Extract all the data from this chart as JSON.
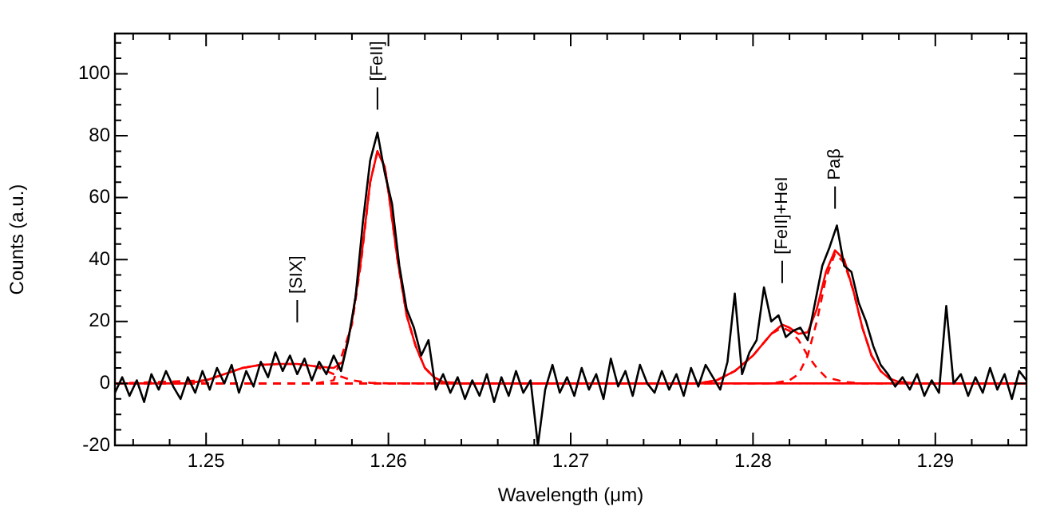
{
  "chart_data": {
    "type": "line",
    "xlabel": "Wavelength (μm)",
    "ylabel": "Counts (a.u.)",
    "xlim": [
      1.245,
      1.295
    ],
    "ylim": [
      -20,
      113
    ],
    "xticks": [
      {
        "value": 1.246,
        "label": null
      },
      {
        "value": 1.248,
        "label": null
      },
      1.25,
      {
        "value": 1.252,
        "label": null
      },
      {
        "value": 1.254,
        "label": null
      },
      {
        "value": 1.256,
        "label": null
      },
      {
        "value": 1.258,
        "label": null
      },
      1.26,
      {
        "value": 1.262,
        "label": null
      },
      {
        "value": 1.264,
        "label": null
      },
      {
        "value": 1.266,
        "label": null
      },
      {
        "value": 1.268,
        "label": null
      },
      1.27,
      {
        "value": 1.272,
        "label": null
      },
      {
        "value": 1.274,
        "label": null
      },
      {
        "value": 1.276,
        "label": null
      },
      {
        "value": 1.278,
        "label": null
      },
      1.28,
      {
        "value": 1.282,
        "label": null
      },
      {
        "value": 1.284,
        "label": null
      },
      {
        "value": 1.286,
        "label": null
      },
      {
        "value": 1.288,
        "label": null
      },
      1.29,
      {
        "value": 1.292,
        "label": null
      },
      {
        "value": 1.294,
        "label": null
      }
    ],
    "yticks": [
      -20,
      {
        "value": -15,
        "label": null
      },
      {
        "value": -10,
        "label": null
      },
      {
        "value": -5,
        "label": null
      },
      0,
      {
        "value": 5,
        "label": null
      },
      {
        "value": 10,
        "label": null
      },
      {
        "value": 15,
        "label": null
      },
      20,
      {
        "value": 25,
        "label": null
      },
      {
        "value": 30,
        "label": null
      },
      {
        "value": 35,
        "label": null
      },
      40,
      {
        "value": 45,
        "label": null
      },
      {
        "value": 50,
        "label": null
      },
      {
        "value": 55,
        "label": null
      },
      60,
      {
        "value": 65,
        "label": null
      },
      {
        "value": 70,
        "label": null
      },
      {
        "value": 75,
        "label": null
      },
      80,
      {
        "value": 85,
        "label": null
      },
      {
        "value": 90,
        "label": null
      },
      {
        "value": 95,
        "label": null
      },
      100,
      {
        "value": 105,
        "label": null
      },
      {
        "value": 110,
        "label": null
      }
    ],
    "grid": false,
    "legend": false,
    "marker": "none",
    "series": [
      {
        "type": "line",
        "color": "#000000",
        "line_style": "solid",
        "x": [
          1.245,
          1.2454,
          1.2458,
          1.2462,
          1.2466,
          1.247,
          1.2474,
          1.2478,
          1.2482,
          1.2486,
          1.249,
          1.2494,
          1.2498,
          1.2502,
          1.2506,
          1.251,
          1.2514,
          1.2518,
          1.2522,
          1.2526,
          1.253,
          1.2534,
          1.2538,
          1.2542,
          1.2546,
          1.255,
          1.2554,
          1.2558,
          1.2562,
          1.2566,
          1.257,
          1.2574,
          1.2578,
          1.2582,
          1.2586,
          1.259,
          1.2594,
          1.2598,
          1.2602,
          1.2606,
          1.261,
          1.2614,
          1.2618,
          1.2622,
          1.2626,
          1.263,
          1.2634,
          1.2638,
          1.2642,
          1.2646,
          1.265,
          1.2654,
          1.2658,
          1.2662,
          1.2666,
          1.267,
          1.2674,
          1.2678,
          1.2682,
          1.2686,
          1.269,
          1.2694,
          1.2698,
          1.2702,
          1.2706,
          1.271,
          1.2714,
          1.2718,
          1.2722,
          1.2726,
          1.273,
          1.2734,
          1.2738,
          1.2742,
          1.2746,
          1.275,
          1.2754,
          1.2758,
          1.2762,
          1.2766,
          1.277,
          1.2774,
          1.2778,
          1.2782,
          1.2786,
          1.279,
          1.2794,
          1.2798,
          1.2802,
          1.2806,
          1.281,
          1.2814,
          1.2818,
          1.2822,
          1.2826,
          1.283,
          1.2834,
          1.2838,
          1.2842,
          1.2846,
          1.285,
          1.2854,
          1.2858,
          1.2862,
          1.2866,
          1.287,
          1.2874,
          1.2878,
          1.2882,
          1.2886,
          1.289,
          1.2894,
          1.2898,
          1.2902,
          1.2906,
          1.291,
          1.2914,
          1.2918,
          1.2922,
          1.2926,
          1.293,
          1.2934,
          1.2938,
          1.2942,
          1.2946,
          1.295
        ],
        "values": [
          -3,
          2,
          -4,
          1,
          -6,
          3,
          -2,
          4,
          -1,
          -5,
          2,
          -3,
          4,
          -2,
          5,
          0,
          6,
          -3,
          4,
          -1,
          7,
          2,
          10,
          4,
          9,
          3,
          8,
          1,
          7,
          3,
          9,
          4,
          14,
          28,
          52,
          72,
          81,
          68,
          58,
          38,
          24,
          18,
          9,
          14,
          -2,
          3,
          -3,
          2,
          -5,
          1,
          -4,
          3,
          -6,
          2,
          -4,
          4,
          -3,
          1,
          -20,
          -2,
          6,
          -3,
          2,
          -4,
          5,
          -2,
          3,
          -5,
          8,
          -1,
          4,
          -4,
          6,
          0,
          -3,
          4,
          -2,
          3,
          -4,
          5,
          -1,
          6,
          2,
          -2,
          7,
          29,
          3,
          10,
          14,
          31,
          20,
          22,
          15,
          17,
          18,
          14,
          26,
          38,
          44,
          51,
          38,
          36,
          26,
          20,
          12,
          6,
          3,
          -1,
          2,
          -2,
          3,
          -4,
          1,
          -3,
          25,
          0,
          3,
          -4,
          2,
          -3,
          5,
          -2,
          3,
          -5,
          4,
          1
        ]
      },
      {
        "type": "line",
        "color": "#ff0000",
        "line_style": "dashed",
        "x": [
          1.245,
          1.25,
          1.251,
          1.252,
          1.253,
          1.254,
          1.255,
          1.256,
          1.257,
          1.258,
          1.259,
          1.26,
          1.295
        ],
        "values": [
          0,
          1,
          3,
          5,
          6,
          6.3,
          6.3,
          5.5,
          3,
          1,
          0.2,
          0,
          0
        ]
      },
      {
        "type": "line",
        "color": "#ff0000",
        "line_style": "dashed",
        "x": [
          1.245,
          1.256,
          1.257,
          1.258,
          1.2585,
          1.259,
          1.2594,
          1.2598,
          1.26,
          1.2605,
          1.261,
          1.2615,
          1.262,
          1.2625,
          1.263,
          1.264,
          1.295
        ],
        "values": [
          0,
          0,
          1,
          19,
          39,
          65,
          75,
          70,
          62,
          40,
          22,
          12,
          5,
          2,
          0.5,
          0,
          0
        ]
      },
      {
        "type": "line",
        "color": "#ff0000",
        "line_style": "dashed",
        "x": [
          1.245,
          1.277,
          1.278,
          1.279,
          1.28,
          1.281,
          1.2816,
          1.282,
          1.2825,
          1.283,
          1.2835,
          1.284,
          1.285,
          1.286,
          1.295
        ],
        "values": [
          0,
          0,
          1,
          4,
          9,
          16,
          18,
          17,
          14,
          9,
          5,
          2,
          0.5,
          0,
          0
        ]
      },
      {
        "type": "line",
        "color": "#ff0000",
        "line_style": "dashed",
        "x": [
          1.245,
          1.281,
          1.282,
          1.2825,
          1.283,
          1.2835,
          1.284,
          1.2845,
          1.285,
          1.2855,
          1.286,
          1.2865,
          1.287,
          1.2875,
          1.288,
          1.289,
          1.295
        ],
        "values": [
          0,
          0,
          1,
          3,
          9,
          20,
          34,
          42,
          39,
          30,
          18,
          9,
          4,
          1.5,
          0.5,
          0,
          0
        ]
      },
      {
        "type": "line",
        "color": "#ff0000",
        "line_style": "solid",
        "x": [
          1.245,
          1.249,
          1.25,
          1.251,
          1.252,
          1.253,
          1.254,
          1.255,
          1.256,
          1.257,
          1.2575,
          1.258,
          1.2585,
          1.259,
          1.2594,
          1.2598,
          1.26,
          1.2605,
          1.261,
          1.2615,
          1.262,
          1.2625,
          1.263,
          1.264,
          1.277,
          1.278,
          1.279,
          1.28,
          1.281,
          1.2816,
          1.282,
          1.2825,
          1.283,
          1.2835,
          1.284,
          1.2845,
          1.285,
          1.2855,
          1.286,
          1.2865,
          1.287,
          1.2875,
          1.288,
          1.289,
          1.295
        ],
        "values": [
          0,
          0,
          1,
          3,
          5,
          6,
          6.3,
          6.3,
          5.5,
          5,
          7,
          20,
          40,
          65,
          75,
          70,
          62,
          40,
          22,
          12,
          5,
          2,
          0.5,
          0,
          0,
          1,
          4,
          9,
          16,
          19,
          18,
          16,
          16.5,
          24,
          36,
          43,
          40,
          30,
          18,
          9,
          4,
          1.5,
          0.5,
          0,
          0
        ]
      }
    ],
    "annotations": [
      "[SIX]",
      "[FeII]",
      "[FeII]+HeI",
      "Paβ"
    ]
  }
}
